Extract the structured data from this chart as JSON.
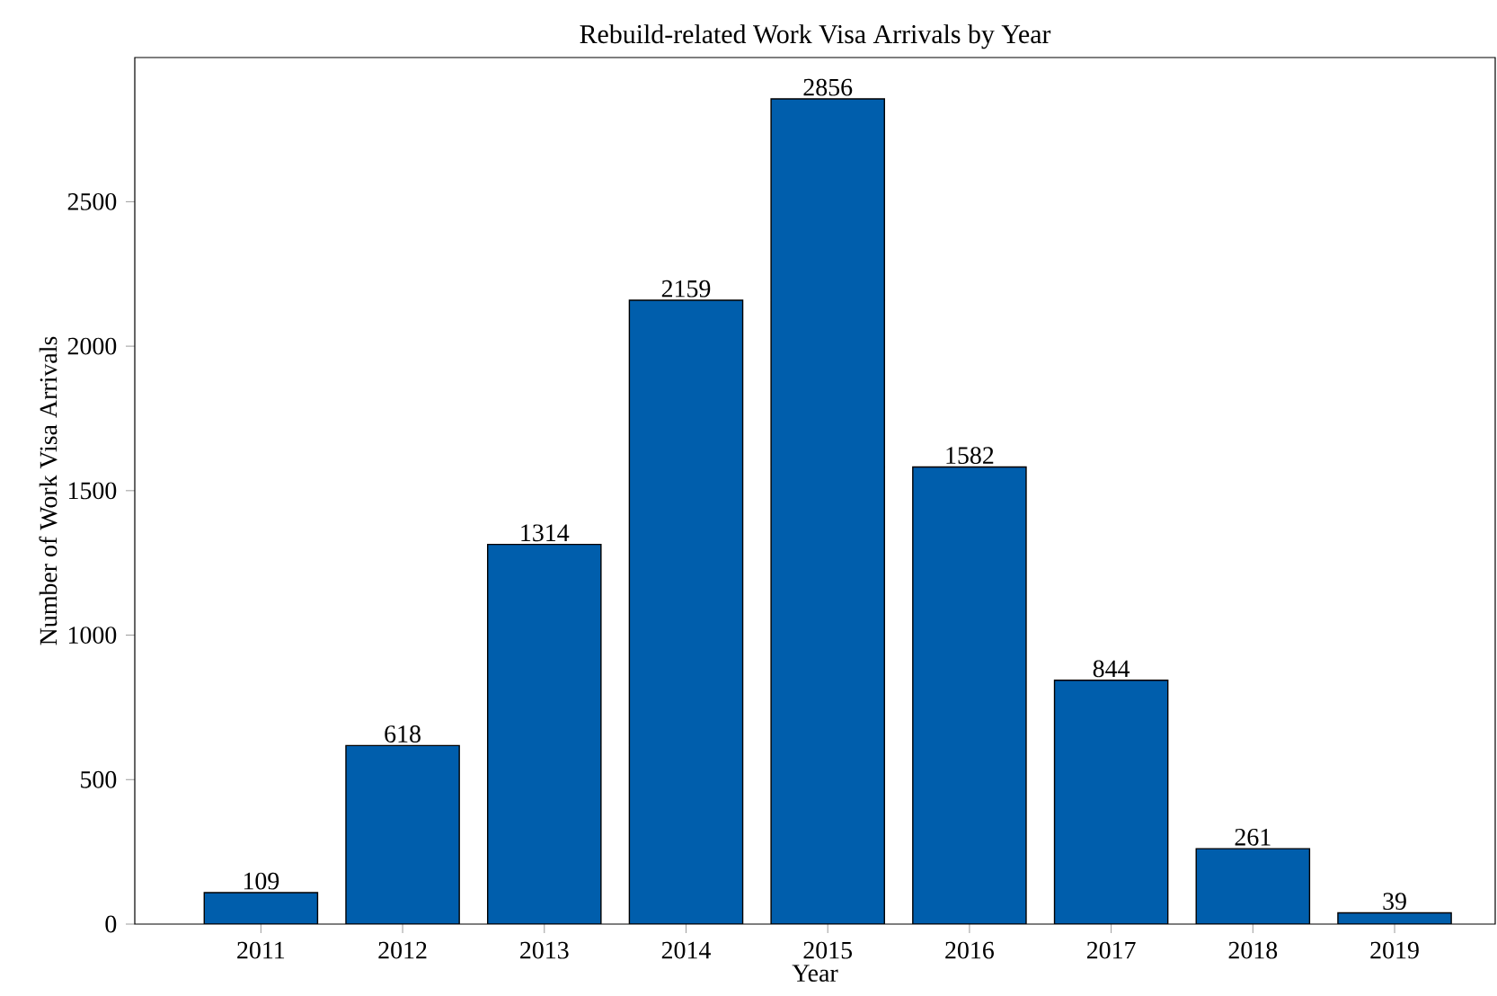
{
  "chart_data": {
    "type": "bar",
    "title": "Rebuild-related Work Visa Arrivals by Year",
    "xlabel": "Year",
    "ylabel": "Number of Work Visa Arrivals",
    "categories": [
      "2011",
      "2012",
      "2013",
      "2014",
      "2015",
      "2016",
      "2017",
      "2018",
      "2019"
    ],
    "values": [
      109,
      618,
      1314,
      2159,
      2856,
      1582,
      844,
      261,
      39
    ],
    "color": "#005eac",
    "ylim": [
      0,
      2999
    ],
    "yticks": [
      0,
      500,
      1000,
      1500,
      2000,
      2500
    ],
    "data_labels": true
  }
}
